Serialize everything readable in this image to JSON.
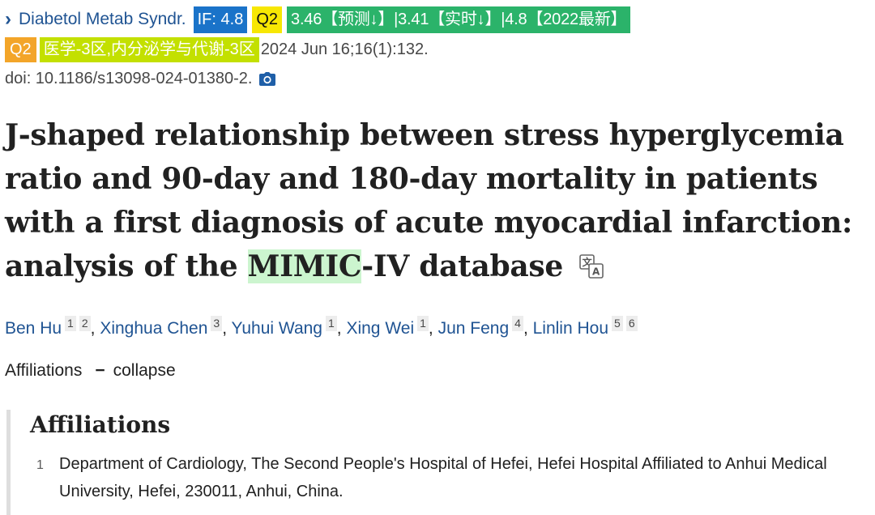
{
  "header": {
    "journal": "Diabetol Metab Syndr.",
    "if_badge": "IF: 4.8",
    "q2_jcr": "Q2",
    "if_prediction": "3.46【预测↓】|3.41【实时↓】|4.8【2022最新】",
    "q2_cas": "Q2",
    "cas_zone": "医学-3区,内分泌学与代谢-3区",
    "citation": "2024 Jun 16;16(1):132.",
    "doi": "doi: 10.1186/s13098-024-01380-2."
  },
  "article": {
    "title_line1": "J-shaped relationship between stress hyperglycemia",
    "title_line2": "ratio and 90-day and 180-day mortality in patients",
    "title_line3": "with a first diagnosis of acute myocardial infarction:",
    "title_line4_pre": "analysis of the ",
    "title_line4_highlight": "MIMIC",
    "title_line4_post": "-IV database"
  },
  "authors": [
    {
      "name": "Ben Hu",
      "affs": [
        "1",
        "2"
      ]
    },
    {
      "name": "Xinghua Chen",
      "affs": [
        "3"
      ]
    },
    {
      "name": "Yuhui Wang",
      "affs": [
        "1"
      ]
    },
    {
      "name": "Xing Wei",
      "affs": [
        "1"
      ]
    },
    {
      "name": "Jun Feng",
      "affs": [
        "4"
      ]
    },
    {
      "name": "Linlin Hou",
      "affs": [
        "5",
        "6"
      ]
    }
  ],
  "author_separator": ", ",
  "affiliations_toggle": {
    "label": "Affiliations",
    "dash": "−",
    "action": "collapse"
  },
  "affiliations": {
    "heading": "Affiliations",
    "items": [
      {
        "num": "1",
        "text": "Department of Cardiology, The Second People's Hospital of Hefei, Hefei Hospital Affiliated to Anhui Medical University, Hefei, 230011, Anhui, China."
      }
    ]
  },
  "icons": {
    "chevron": "chevron-right-icon",
    "camera": "camera-icon",
    "translate": "translate-icon"
  },
  "colors": {
    "link": "#205493",
    "if_badge": "#1a73c9",
    "q2_yellow": "#f7e703",
    "prediction_badge": "#2bb36a",
    "q2_orange": "#f3a529",
    "cas_badge": "#c3e000",
    "highlight": "#ccf5cf"
  }
}
